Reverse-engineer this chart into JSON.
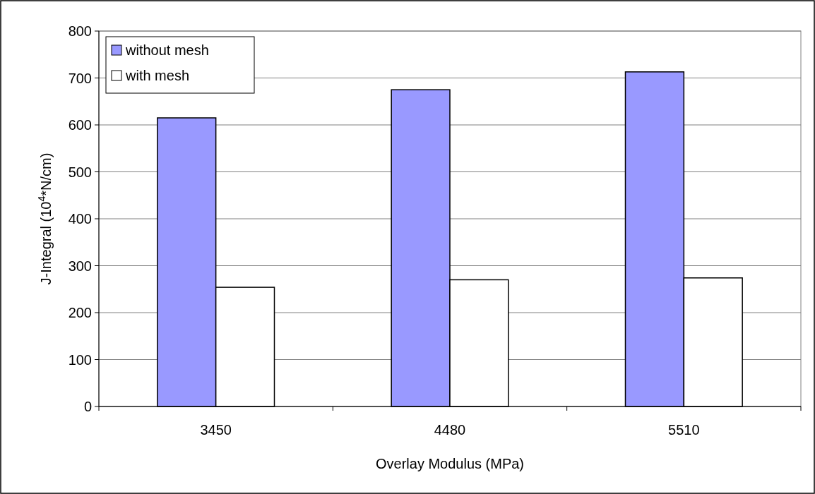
{
  "chart_data": {
    "type": "bar",
    "xlabel": "Overlay Modulus (MPa)",
    "ylabel": "J-Integral (10$^{4}$*N/cm)",
    "categories": [
      "3450",
      "4480",
      "5510"
    ],
    "series": [
      {
        "name": "without mesh",
        "color": "#9999ff",
        "values": [
          615,
          675,
          713
        ]
      },
      {
        "name": "with mesh",
        "color": "#ffffff",
        "values": [
          254,
          270,
          274
        ]
      }
    ],
    "ylim": [
      0,
      800
    ],
    "yticks": [
      0,
      100,
      200,
      300,
      400,
      500,
      600,
      700,
      800
    ],
    "grid": "y",
    "legend": "top left"
  }
}
